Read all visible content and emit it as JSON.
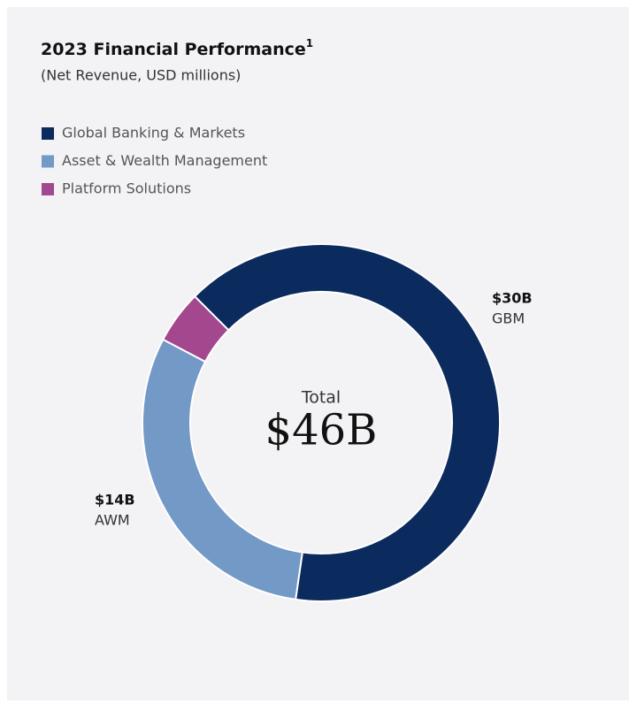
{
  "chart_data": {
    "type": "donut",
    "title": "2023 Financial Performance",
    "title_footnote": "1",
    "subtitle": "(Net Revenue, USD millions)",
    "categories": [
      "Global Banking & Markets",
      "Asset & Wealth Management",
      "Platform Solutions"
    ],
    "short_names": [
      "GBM",
      "AWM",
      null
    ],
    "values": [
      29800,
      14000,
      2200
    ],
    "value_labels": [
      "$30B",
      "$14B",
      null
    ],
    "colors": [
      "#0b2a5e",
      "#7399c6",
      "#a3478e"
    ],
    "total": {
      "label": "Total",
      "value": 46000,
      "value_label": "$46B"
    },
    "legend": "top-left"
  }
}
